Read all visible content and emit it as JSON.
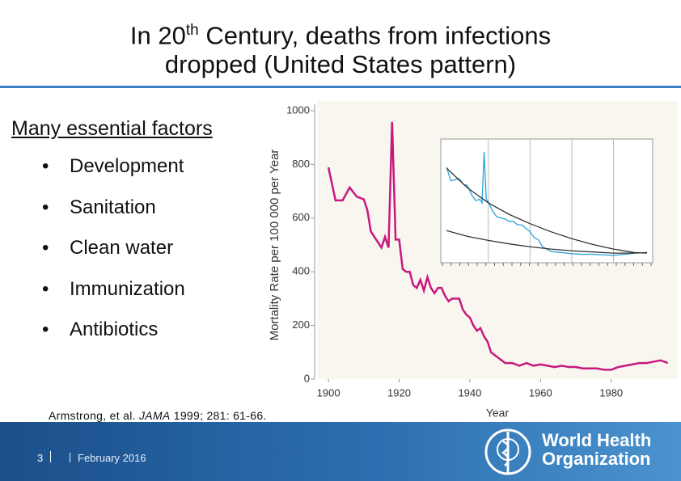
{
  "slide": {
    "title_a": "In 20",
    "title_sup": "th",
    "title_b": " Century, deaths from infections",
    "title_line2": "dropped (United States pattern)",
    "heading": "Many essential factors",
    "bullets": [
      "Development",
      "Sanitation",
      "Clean water",
      "Immunization",
      "Antibiotics"
    ],
    "citation_a": "Armstrong, et al. ",
    "citation_journal": "JAMA",
    "citation_b": " 1999; 281: 61-66.",
    "page_number": "3",
    "date": "February 2016",
    "org_line1": "World Health",
    "org_line2": "Organization"
  },
  "chart_data": [
    {
      "type": "line",
      "xlabel": "Year",
      "ylabel": "Mortality Rate per 100 000 per Year",
      "xlim": [
        1897,
        1997
      ],
      "ylim": [
        0,
        1000
      ],
      "xticks": [
        1900,
        1920,
        1940,
        1960,
        1980
      ],
      "yticks": [
        0,
        200,
        400,
        600,
        800,
        1000
      ],
      "x": [
        1900,
        1902,
        1904,
        1906,
        1908,
        1910,
        1911,
        1912,
        1913,
        1914,
        1915,
        1916,
        1917,
        1918,
        1919,
        1920,
        1921,
        1922,
        1923,
        1924,
        1925,
        1926,
        1927,
        1928,
        1929,
        1930,
        1931,
        1932,
        1933,
        1934,
        1935,
        1936,
        1937,
        1938,
        1939,
        1940,
        1941,
        1942,
        1943,
        1944,
        1945,
        1946,
        1947,
        1948,
        1949,
        1950,
        1952,
        1954,
        1956,
        1958,
        1960,
        1962,
        1964,
        1966,
        1968,
        1970,
        1972,
        1974,
        1976,
        1978,
        1980,
        1982,
        1984,
        1986,
        1988,
        1990,
        1992,
        1994,
        1996
      ],
      "series": [
        {
          "color": "#c8187e",
          "values": [
            789,
            666,
            666,
            714,
            680,
            670,
            630,
            550,
            530,
            510,
            490,
            530,
            490,
            958,
            520,
            520,
            410,
            400,
            400,
            350,
            340,
            370,
            330,
            380,
            340,
            320,
            340,
            340,
            310,
            290,
            300,
            300,
            300,
            260,
            240,
            230,
            200,
            180,
            190,
            160,
            140,
            100,
            90,
            80,
            70,
            60,
            60,
            50,
            60,
            50,
            55,
            50,
            45,
            50,
            45,
            45,
            40,
            40,
            40,
            35,
            35,
            45,
            50,
            55,
            60,
            60,
            65,
            70,
            60
          ]
        }
      ]
    },
    {
      "type": "line",
      "xlim": [
        1898,
        1998
      ],
      "ylim": [
        0,
        1000
      ],
      "xgrid": [
        1920,
        1940,
        1960,
        1980
      ],
      "series": [
        {
          "color": "#2aa3d8",
          "x": [
            1900,
            1902,
            1904,
            1906,
            1908,
            1910,
            1912,
            1914,
            1916,
            1917,
            1918,
            1919,
            1920,
            1922,
            1924,
            1926,
            1928,
            1930,
            1932,
            1934,
            1936,
            1938,
            1940,
            1942,
            1944,
            1946,
            1948,
            1950,
            1955,
            1960,
            1965,
            1970,
            1975,
            1980,
            1985,
            1990,
            1996
          ],
          "values": [
            800,
            680,
            690,
            700,
            650,
            640,
            560,
            510,
            520,
            490,
            930,
            520,
            500,
            420,
            370,
            360,
            350,
            330,
            330,
            300,
            300,
            270,
            240,
            190,
            170,
            110,
            90,
            70,
            60,
            50,
            45,
            45,
            40,
            35,
            45,
            55,
            60
          ]
        },
        {
          "color": "#333333",
          "x": [
            1900,
            1910,
            1920,
            1930,
            1940,
            1950,
            1960,
            1970,
            1980,
            1990,
            1996
          ],
          "values": [
            790,
            620,
            490,
            390,
            310,
            240,
            180,
            130,
            90,
            60,
            55
          ]
        },
        {
          "color": "#333333",
          "x": [
            1900,
            1910,
            1920,
            1930,
            1940,
            1950,
            1960,
            1970,
            1980,
            1990,
            1996
          ],
          "values": [
            250,
            200,
            165,
            135,
            110,
            90,
            75,
            65,
            55,
            55,
            60
          ]
        }
      ]
    }
  ]
}
